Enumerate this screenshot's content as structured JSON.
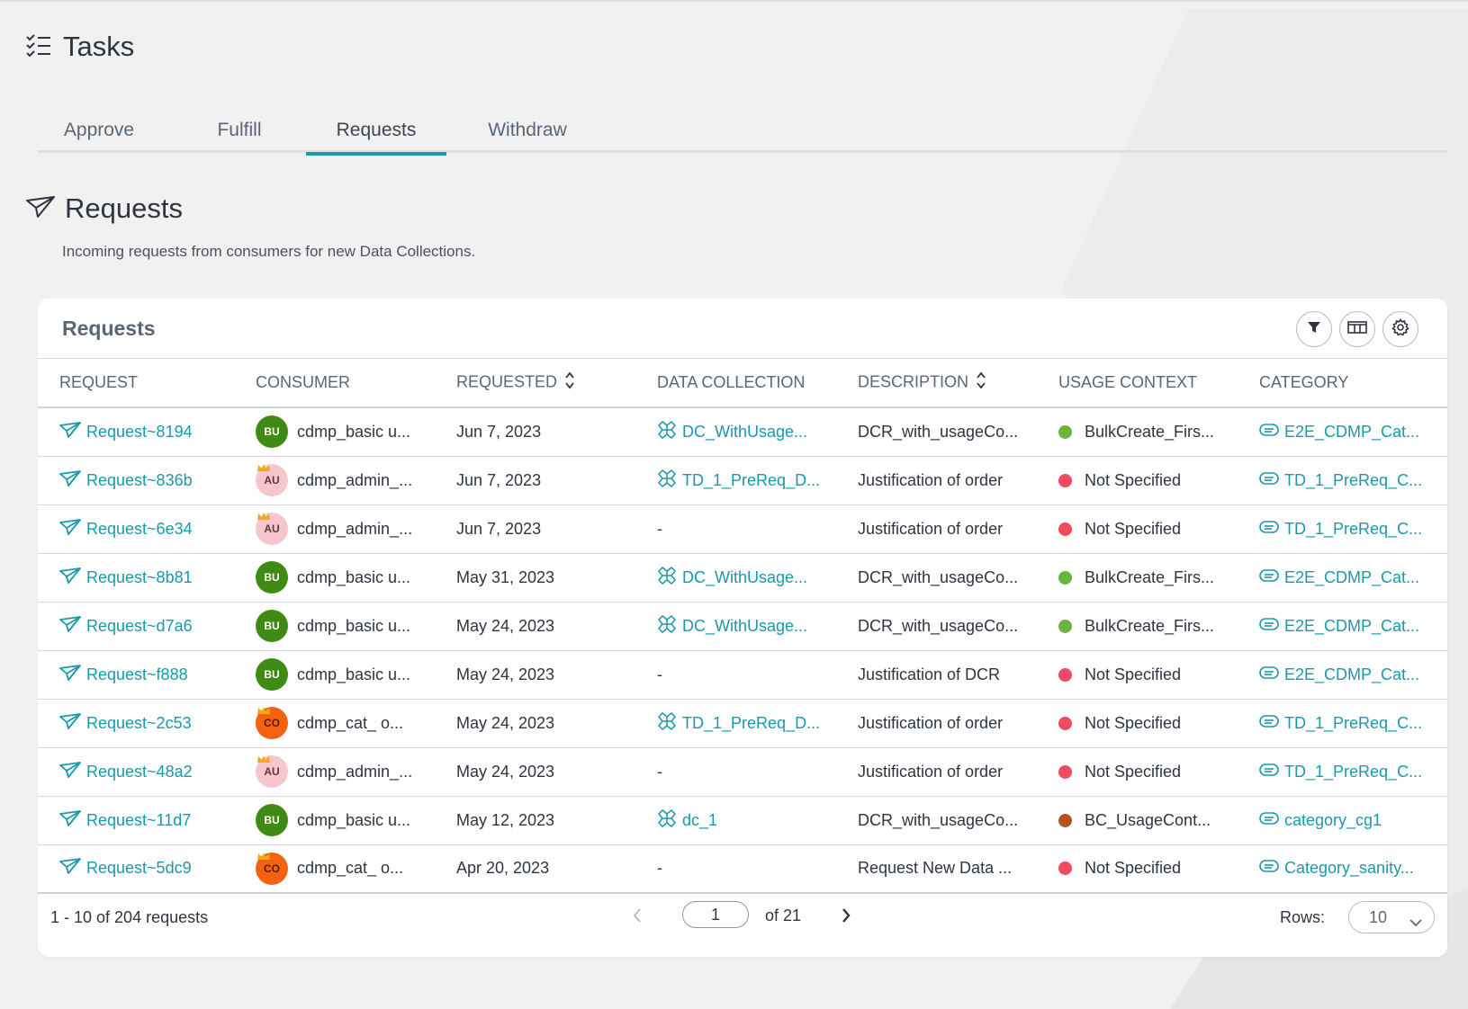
{
  "page": {
    "title": "Tasks"
  },
  "tabs": [
    {
      "label": "Approve",
      "active": false
    },
    {
      "label": "Fulfill",
      "active": false
    },
    {
      "label": "Requests",
      "active": true
    },
    {
      "label": "Withdraw",
      "active": false
    }
  ],
  "section": {
    "title": "Requests",
    "description": "Incoming requests from consumers for new Data Collections."
  },
  "card": {
    "title": "Requests",
    "toolbar": [
      "filter-icon",
      "columns-icon",
      "settings-icon"
    ]
  },
  "columns": [
    "REQUEST",
    "CONSUMER",
    "REQUESTED",
    "DATA COLLECTION",
    "DESCRIPTION",
    "USAGE CONTEXT",
    "CATEGORY"
  ],
  "colors": {
    "accent": "#1a98ac",
    "usage_green": "#6db33f",
    "usage_red": "#f04a5c",
    "usage_brown": "#b6521a"
  },
  "rows": [
    {
      "request": "Request~8194",
      "avatar": "BU",
      "avatar_type": "bu",
      "crown": false,
      "consumer": "cdmp_basic u...",
      "requested": "Jun 7, 2023",
      "data_collection": "DC_WithUsage...",
      "description": "DCR_with_usageCo...",
      "usage_color": "#6db33f",
      "usage": "BulkCreate_Firs...",
      "category": "E2E_CDMP_Cat..."
    },
    {
      "request": "Request~836b",
      "avatar": "AU",
      "avatar_type": "au",
      "crown": true,
      "consumer": "cdmp_admin_...",
      "requested": "Jun 7, 2023",
      "data_collection": "TD_1_PreReq_D...",
      "description": "Justification of order",
      "usage_color": "#f04a5c",
      "usage": "Not Specified",
      "category": "TD_1_PreReq_C..."
    },
    {
      "request": "Request~6e34",
      "avatar": "AU",
      "avatar_type": "au",
      "crown": true,
      "consumer": "cdmp_admin_...",
      "requested": "Jun 7, 2023",
      "data_collection": "-",
      "description": "Justification of order",
      "usage_color": "#f04a5c",
      "usage": "Not Specified",
      "category": "TD_1_PreReq_C..."
    },
    {
      "request": "Request~8b81",
      "avatar": "BU",
      "avatar_type": "bu",
      "crown": false,
      "consumer": "cdmp_basic u...",
      "requested": "May 31, 2023",
      "data_collection": "DC_WithUsage...",
      "description": "DCR_with_usageCo...",
      "usage_color": "#6db33f",
      "usage": "BulkCreate_Firs...",
      "category": "E2E_CDMP_Cat..."
    },
    {
      "request": "Request~d7a6",
      "avatar": "BU",
      "avatar_type": "bu",
      "crown": false,
      "consumer": "cdmp_basic u...",
      "requested": "May 24, 2023",
      "data_collection": "DC_WithUsage...",
      "description": "DCR_with_usageCo...",
      "usage_color": "#6db33f",
      "usage": "BulkCreate_Firs...",
      "category": "E2E_CDMP_Cat..."
    },
    {
      "request": "Request~f888",
      "avatar": "BU",
      "avatar_type": "bu",
      "crown": false,
      "consumer": "cdmp_basic u...",
      "requested": "May 24, 2023",
      "data_collection": "-",
      "description": "Justification of DCR",
      "usage_color": "#f04a5c",
      "usage": "Not Specified",
      "category": "E2E_CDMP_Cat..."
    },
    {
      "request": "Request~2c53",
      "avatar": "CO",
      "avatar_type": "co",
      "crown": true,
      "consumer": "cdmp_cat_ o...",
      "requested": "May 24, 2023",
      "data_collection": "TD_1_PreReq_D...",
      "description": "Justification of order",
      "usage_color": "#f04a5c",
      "usage": "Not Specified",
      "category": "TD_1_PreReq_C..."
    },
    {
      "request": "Request~48a2",
      "avatar": "AU",
      "avatar_type": "au",
      "crown": true,
      "consumer": "cdmp_admin_...",
      "requested": "May 24, 2023",
      "data_collection": "-",
      "description": "Justification of order",
      "usage_color": "#f04a5c",
      "usage": "Not Specified",
      "category": "TD_1_PreReq_C..."
    },
    {
      "request": "Request~11d7",
      "avatar": "BU",
      "avatar_type": "bu",
      "crown": false,
      "consumer": "cdmp_basic u...",
      "requested": "May 12, 2023",
      "data_collection": "dc_1",
      "description": "DCR_with_usageCo...",
      "usage_color": "#b6521a",
      "usage": "BC_UsageCont...",
      "category": "category_cg1"
    },
    {
      "request": "Request~5dc9",
      "avatar": "CO",
      "avatar_type": "co",
      "crown": true,
      "consumer": "cdmp_cat_ o...",
      "requested": "Apr 20, 2023",
      "data_collection": "-",
      "description": "Request New Data ...",
      "usage_color": "#f04a5c",
      "usage": "Not Specified",
      "category": "Category_sanity..."
    }
  ],
  "footer": {
    "count_text": "1 - 10 of 204 requests",
    "page_value": "1",
    "of_text": "of 21",
    "rows_label": "Rows:",
    "rows_value": "10"
  }
}
